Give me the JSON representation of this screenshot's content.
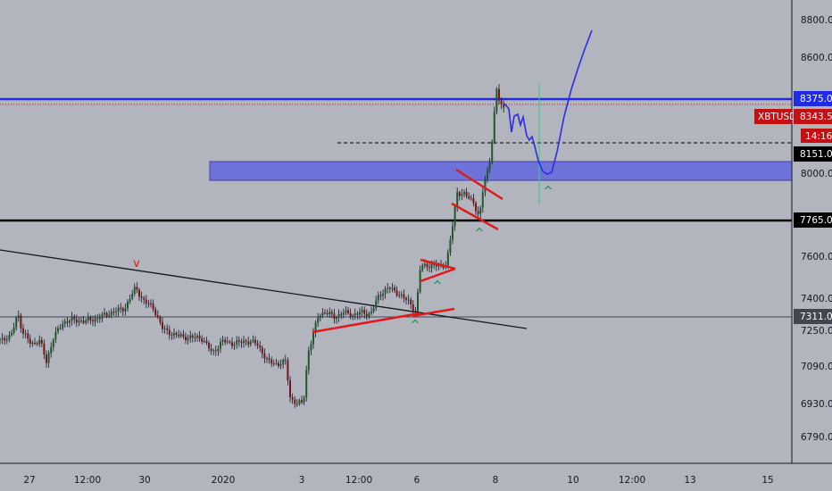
{
  "chart_data": {
    "type": "candlestick",
    "symbol": "XBTUSD",
    "price_axis": {
      "ticks": [
        "8800.0",
        "8600.0",
        "8000.0",
        "7600.0",
        "7400.0",
        "7250.0",
        "7090.0",
        "6930.0",
        "6790.0"
      ],
      "tick_values": [
        8800,
        8600,
        8000,
        7600,
        7400,
        7250,
        7090,
        6930,
        6790
      ]
    },
    "time_axis": {
      "labels": [
        "27",
        "12:00",
        "30",
        "2020",
        "3",
        "12:00",
        "6",
        "8",
        "10",
        "12:00",
        "13",
        "15"
      ]
    },
    "horizontal_levels": [
      {
        "label": "8375.0",
        "value": 8375,
        "color": "#1f2be6",
        "style": "solid"
      },
      {
        "label": "8151.0",
        "value": 8151,
        "color": "#000000",
        "style": "dashed"
      },
      {
        "label": "7765.0",
        "value": 7765,
        "color": "#000000",
        "style": "solid"
      },
      {
        "label": "7311.0",
        "value": 7311,
        "color": "#434651",
        "style": "solid"
      }
    ],
    "last_price": {
      "symbol": "XBTUSD",
      "value": "8343.5",
      "countdown": "14:16",
      "color": "#c41010"
    },
    "zone": {
      "from": 7950,
      "to": 8060,
      "color": "#6f73d9"
    },
    "markers": [
      "v",
      "^",
      "^",
      "^",
      "^",
      "^"
    ],
    "colors": {
      "up": "#1e5a2e",
      "down": "#7a1515",
      "pattern_lines": "#e01919",
      "projection": "#2a2ee0",
      "trendline": "#131722",
      "vertical": "#26d07c"
    }
  }
}
